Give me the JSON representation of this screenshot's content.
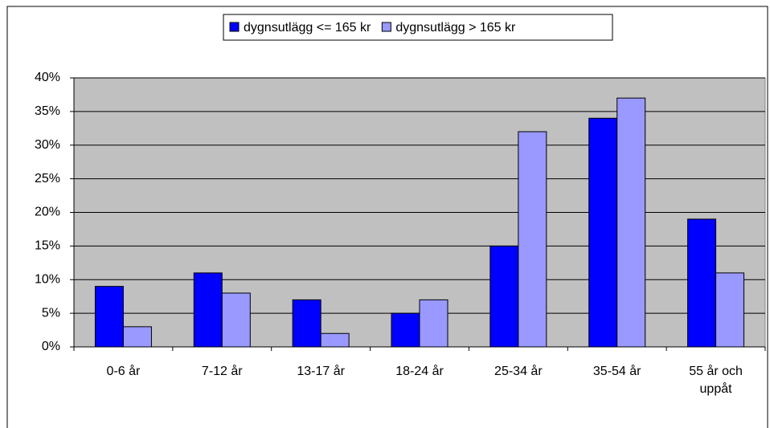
{
  "chart_data": {
    "type": "bar",
    "categories": [
      "0-6 år",
      "7-12 år",
      "13-17 år",
      "18-24 år",
      "25-34 år",
      "35-54 år",
      "55 år och uppåt"
    ],
    "series": [
      {
        "name": "dygnsutlägg <= 165 kr",
        "color": "#0000ff",
        "values": [
          9,
          11,
          7,
          5,
          15,
          34,
          19
        ]
      },
      {
        "name": "dygnsutlägg > 165 kr",
        "color": "#9999ff",
        "values": [
          3,
          8,
          2,
          7,
          32,
          37,
          11
        ]
      }
    ],
    "ylim": [
      0,
      40
    ],
    "yticks": [
      {
        "value": 0,
        "label": "0%"
      },
      {
        "value": 5,
        "label": "5%"
      },
      {
        "value": 10,
        "label": "10%"
      },
      {
        "value": 15,
        "label": "15%"
      },
      {
        "value": 20,
        "label": "20%"
      },
      {
        "value": 25,
        "label": "25%"
      },
      {
        "value": 30,
        "label": "30%"
      },
      {
        "value": 35,
        "label": "35%"
      },
      {
        "value": 40,
        "label": "40%"
      }
    ],
    "grid": true,
    "legend": "top"
  }
}
